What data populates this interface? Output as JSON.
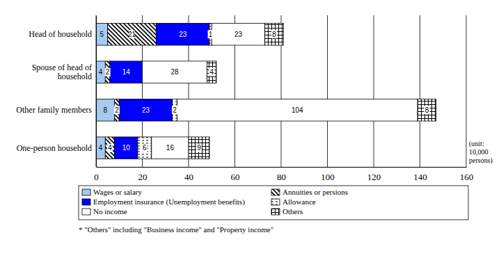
{
  "chart_data": {
    "type": "bar",
    "orientation": "horizontal",
    "stacked": true,
    "data_labels": true,
    "grid": true,
    "categories": [
      "Head of household",
      "Spouse of head of household",
      "Other family members",
      "One-person household"
    ],
    "series": [
      {
        "name": "Wages or salary",
        "color": "#a6caf0",
        "values": [
          5,
          4,
          8,
          4
        ]
      },
      {
        "name": "Annuities or persions",
        "color": "#000000",
        "values": [
          21,
          2,
          2,
          4
        ]
      },
      {
        "name": "Employment insurance (Unemployment benefits)",
        "color": "#0000ff",
        "values": [
          23,
          14,
          23,
          10
        ]
      },
      {
        "name": "Allowance",
        "color": "#000000",
        "values": [
          1,
          null,
          2,
          6
        ]
      },
      {
        "name": "No income",
        "color": "#ffffff",
        "values": [
          23,
          28,
          104,
          16
        ]
      },
      {
        "name": "Others",
        "color": "#000000",
        "values": [
          8,
          4,
          8,
          9
        ]
      }
    ],
    "xlim": [
      0,
      160
    ],
    "xticks": [
      0,
      20,
      40,
      60,
      80,
      100,
      120,
      140,
      160
    ],
    "x_label": "(unit: 10,000 persons)",
    "annotations": [
      "* \"Others\" including \"Business income\" and \"Property income\""
    ]
  }
}
